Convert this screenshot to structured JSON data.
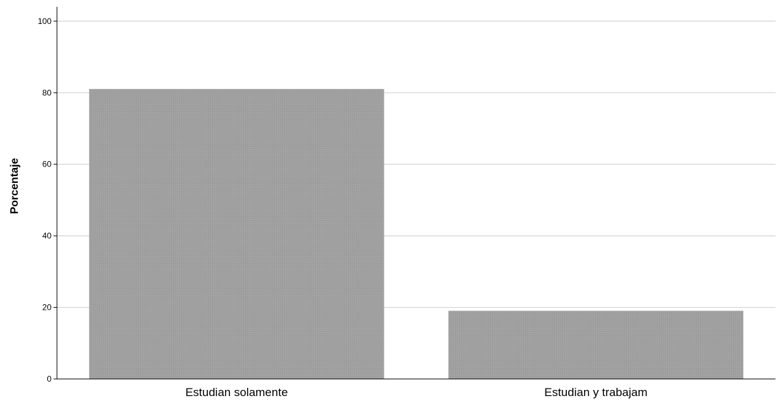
{
  "chart_data": {
    "type": "bar",
    "title": "",
    "xlabel": "",
    "ylabel": "Porcentaje",
    "categories": [
      "Estudian solamente",
      "Estudian y trabajam"
    ],
    "values": [
      81,
      19
    ],
    "ylim": [
      0,
      104
    ],
    "yticks": [
      0,
      20,
      40,
      60,
      80,
      100
    ],
    "grid": true,
    "legend": "none",
    "bar_color": "#a0a0a0"
  }
}
